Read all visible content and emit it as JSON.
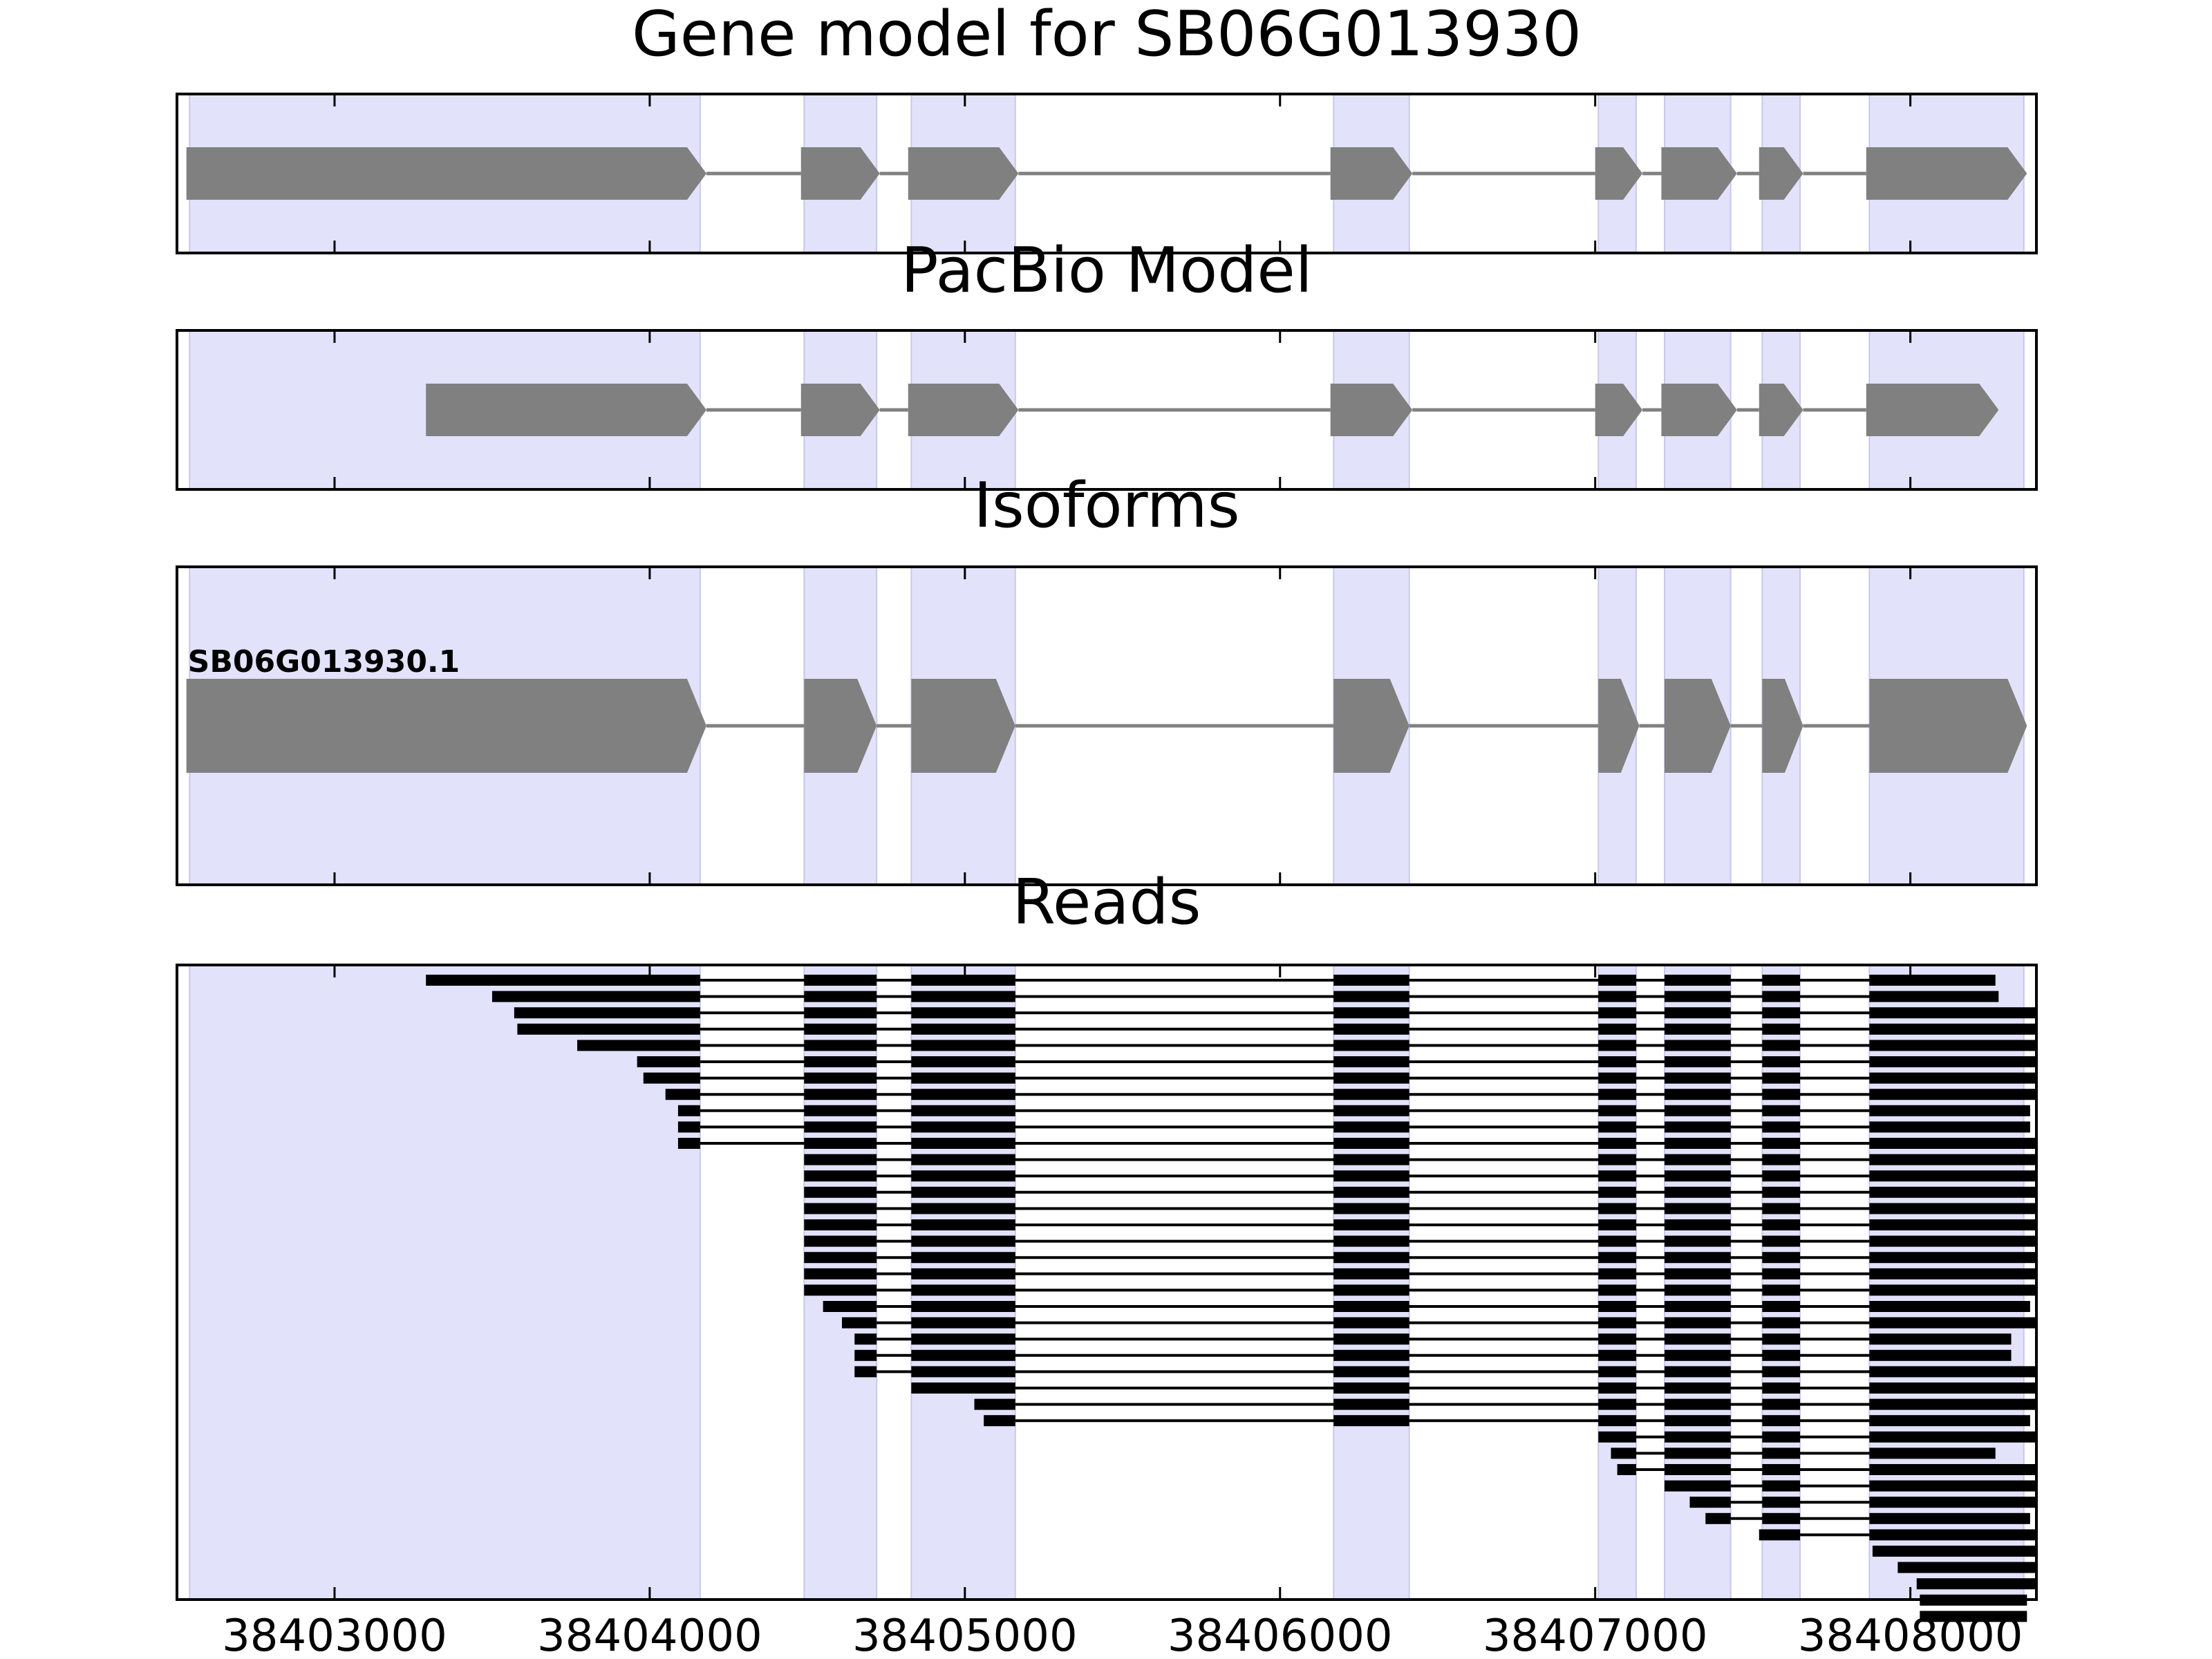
{
  "chart_data": {
    "type": "gene-structure",
    "title": "Gene model for SB06G013930",
    "x_axis": {
      "range": [
        38402500,
        38408400
      ],
      "ticks": [
        38403000,
        38404000,
        38405000,
        38406000,
        38407000,
        38408000
      ],
      "tick_labels": [
        "38403000",
        "38404000",
        "38405000",
        "38406000",
        "38407000",
        "38408000"
      ]
    },
    "highlight_color": "#e2e2fb",
    "feature_color": "#808080",
    "read_color": "#000000",
    "clusters": [
      [
        38402540,
        38404160
      ],
      [
        38404490,
        38404720
      ],
      [
        38404830,
        38405160
      ],
      [
        38406170,
        38406410
      ],
      [
        38407010,
        38407130
      ],
      [
        38407220,
        38407430
      ],
      [
        38407530,
        38407650
      ],
      [
        38407870,
        38408360
      ]
    ],
    "panels": [
      {
        "title": "Gene model for SB06G013930",
        "type": "gene_model",
        "strand": "+",
        "exons": [
          [
            38402530,
            38404180
          ],
          [
            38404480,
            38404730
          ],
          [
            38404820,
            38405170
          ],
          [
            38406160,
            38406420
          ],
          [
            38407000,
            38407150
          ],
          [
            38407210,
            38407450
          ],
          [
            38407520,
            38407660
          ],
          [
            38407860,
            38408370
          ]
        ]
      },
      {
        "title": "PacBio Model",
        "type": "gene_model",
        "strand": "+",
        "exons": [
          [
            38403290,
            38404180
          ],
          [
            38404480,
            38404730
          ],
          [
            38404820,
            38405170
          ],
          [
            38406160,
            38406420
          ],
          [
            38407000,
            38407150
          ],
          [
            38407210,
            38407450
          ],
          [
            38407520,
            38407660
          ],
          [
            38407860,
            38408280
          ]
        ]
      },
      {
        "title": "Isoforms",
        "type": "isoforms",
        "isoforms": [
          {
            "name": "SB06G013930.1",
            "strand": "+",
            "exons": [
              [
                38402530,
                38404180
              ],
              [
                38404490,
                38404720
              ],
              [
                38404830,
                38405160
              ],
              [
                38406170,
                38406410
              ],
              [
                38407010,
                38407140
              ],
              [
                38407220,
                38407430
              ],
              [
                38407530,
                38407660
              ],
              [
                38407870,
                38408370
              ]
            ]
          }
        ]
      },
      {
        "title": "Reads",
        "type": "reads",
        "exon_bounds": [
          [
            38404160,
            38404490
          ],
          [
            38404720,
            38404830
          ],
          [
            38405160,
            38406170
          ],
          [
            38406410,
            38407010
          ],
          [
            38407130,
            38407220
          ],
          [
            38407430,
            38407530
          ],
          [
            38407650,
            38407870
          ]
        ],
        "reads": [
          [
            38403290,
            38408270
          ],
          [
            38403500,
            38408280
          ],
          [
            38403570,
            38408400
          ],
          [
            38403580,
            38408400
          ],
          [
            38403770,
            38408400
          ],
          [
            38403960,
            38408400
          ],
          [
            38403980,
            38408400
          ],
          [
            38404050,
            38408400
          ],
          [
            38404090,
            38408380
          ],
          [
            38404090,
            38408380
          ],
          [
            38404090,
            38408400
          ],
          [
            38404490,
            38408400
          ],
          [
            38404490,
            38408400
          ],
          [
            38404490,
            38408400
          ],
          [
            38404490,
            38408400
          ],
          [
            38404490,
            38408400
          ],
          [
            38404490,
            38408400
          ],
          [
            38404490,
            38408400
          ],
          [
            38404490,
            38408400
          ],
          [
            38404490,
            38408400
          ],
          [
            38404550,
            38408380
          ],
          [
            38404610,
            38408400
          ],
          [
            38404650,
            38408320
          ],
          [
            38404650,
            38408320
          ],
          [
            38404650,
            38408400
          ],
          [
            38404830,
            38408400
          ],
          [
            38405030,
            38408400
          ],
          [
            38405060,
            38408380
          ],
          [
            38407010,
            38408400
          ],
          [
            38407050,
            38408270
          ],
          [
            38407070,
            38408400
          ],
          [
            38407220,
            38408400
          ],
          [
            38407300,
            38408400
          ],
          [
            38407350,
            38408380
          ],
          [
            38407520,
            38408400
          ],
          [
            38407880,
            38408400
          ],
          [
            38407960,
            38408400
          ],
          [
            38408020,
            38408400
          ],
          [
            38408030,
            38408370
          ],
          [
            38408030,
            38408370
          ]
        ]
      }
    ]
  }
}
